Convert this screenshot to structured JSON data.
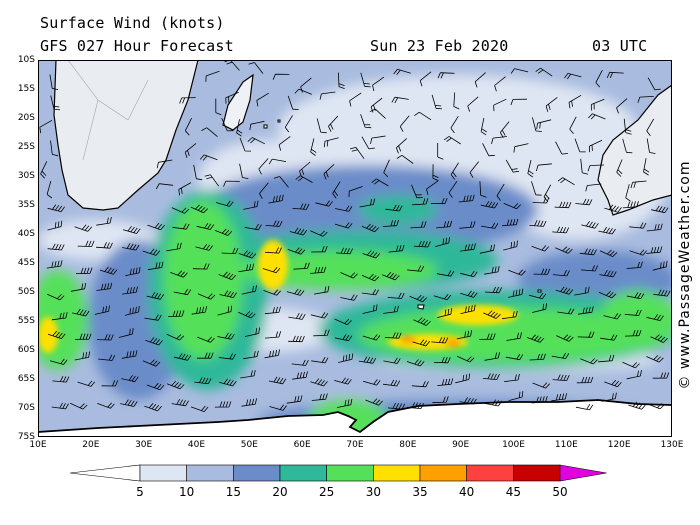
{
  "header": {
    "title": "Surface Wind (knots)",
    "model": "GFS 027 Hour Forecast",
    "date": "Sun 23 Feb 2020",
    "time": "03 UTC"
  },
  "watermark": "© www.PassageWeather.com",
  "map": {
    "lat_labels": [
      "10S",
      "15S",
      "20S",
      "25S",
      "30S",
      "35S",
      "40S",
      "45S",
      "50S",
      "55S",
      "60S",
      "65S",
      "70S",
      "75S"
    ],
    "lon_labels": [
      "10E",
      "20E",
      "30E",
      "40E",
      "50E",
      "60E",
      "70E",
      "80E",
      "90E",
      "100E",
      "110E",
      "120E",
      "130E"
    ],
    "lat_range": [
      -10,
      -75
    ],
    "lon_range": [
      10,
      130
    ]
  },
  "legend": {
    "labels": [
      "5",
      "10",
      "15",
      "20",
      "25",
      "30",
      "35",
      "40",
      "45",
      "50"
    ],
    "colors": [
      "#ffffff",
      "#dfe6f3",
      "#a9bcdf",
      "#6a8cc9",
      "#2fb89a",
      "#55e05a",
      "#ffe000",
      "#ffa000",
      "#ff4040",
      "#c80000",
      "#e000e0"
    ]
  },
  "colors": {
    "ocean_light": "#dfe6f3",
    "ocean_mid": "#a9bcdf",
    "ocean_blue": "#6a8cc9",
    "teal": "#2fb89a",
    "green": "#55e05a",
    "yellow": "#ffe000",
    "orange": "#ffa000",
    "land": "#ffffff"
  }
}
